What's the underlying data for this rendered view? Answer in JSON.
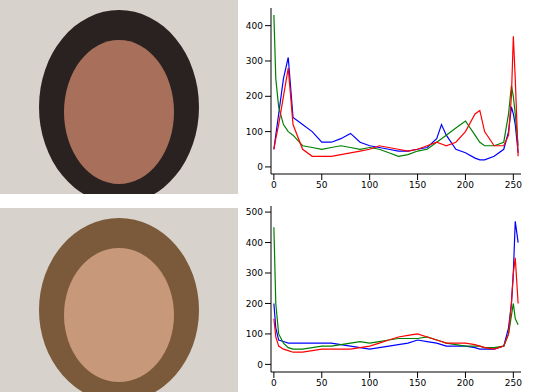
{
  "chart_data": [
    {
      "type": "line",
      "x": [
        0,
        2,
        5,
        10,
        15,
        20,
        30,
        40,
        50,
        60,
        70,
        80,
        90,
        100,
        110,
        120,
        130,
        140,
        150,
        160,
        170,
        175,
        180,
        190,
        200,
        210,
        215,
        220,
        230,
        240,
        245,
        248,
        250,
        252,
        255
      ],
      "series": [
        {
          "color": "#0000ff",
          "values": [
            50,
            90,
            150,
            250,
            310,
            140,
            120,
            100,
            70,
            70,
            80,
            95,
            70,
            60,
            55,
            50,
            45,
            45,
            50,
            55,
            80,
            120,
            90,
            50,
            40,
            25,
            20,
            20,
            30,
            50,
            100,
            170,
            150,
            120,
            40
          ]
        },
        {
          "color": "#008000",
          "values": [
            430,
            250,
            170,
            120,
            100,
            90,
            60,
            55,
            50,
            55,
            60,
            55,
            50,
            55,
            50,
            40,
            30,
            35,
            45,
            50,
            70,
            80,
            90,
            110,
            130,
            90,
            70,
            60,
            60,
            70,
            150,
            230,
            200,
            150,
            60
          ]
        },
        {
          "color": "#ff0000",
          "values": [
            50,
            80,
            120,
            200,
            280,
            120,
            50,
            30,
            30,
            30,
            35,
            40,
            45,
            50,
            60,
            55,
            50,
            45,
            50,
            60,
            70,
            65,
            60,
            70,
            100,
            150,
            160,
            100,
            60,
            60,
            90,
            200,
            370,
            250,
            30
          ]
        }
      ],
      "xlim": [
        -3,
        258
      ],
      "xticks": [
        0,
        50,
        100,
        150,
        200,
        250
      ],
      "ylim": [
        -20,
        450
      ],
      "yticks": [
        0,
        100,
        200,
        300,
        400
      ]
    },
    {
      "type": "line",
      "x": [
        0,
        2,
        5,
        10,
        15,
        20,
        30,
        40,
        50,
        60,
        70,
        80,
        90,
        100,
        110,
        120,
        130,
        140,
        150,
        160,
        170,
        175,
        180,
        190,
        200,
        210,
        215,
        220,
        230,
        240,
        245,
        248,
        250,
        252,
        255
      ],
      "series": [
        {
          "color": "#0000ff",
          "values": [
            200,
            120,
            80,
            75,
            70,
            70,
            70,
            70,
            70,
            70,
            65,
            60,
            55,
            50,
            55,
            60,
            65,
            70,
            80,
            75,
            70,
            65,
            60,
            60,
            60,
            55,
            50,
            50,
            50,
            60,
            120,
            200,
            300,
            470,
            400
          ]
        },
        {
          "color": "#008000",
          "values": [
            450,
            200,
            100,
            70,
            55,
            50,
            50,
            55,
            60,
            60,
            65,
            70,
            75,
            70,
            75,
            80,
            85,
            85,
            85,
            90,
            80,
            75,
            70,
            65,
            60,
            60,
            60,
            55,
            55,
            60,
            100,
            160,
            200,
            150,
            130
          ]
        },
        {
          "color": "#ff0000",
          "values": [
            150,
            90,
            60,
            50,
            45,
            40,
            40,
            45,
            50,
            50,
            50,
            50,
            55,
            60,
            70,
            80,
            90,
            95,
            100,
            90,
            80,
            75,
            70,
            70,
            70,
            65,
            60,
            55,
            50,
            60,
            100,
            200,
            300,
            350,
            200
          ]
        }
      ],
      "xlim": [
        -3,
        258
      ],
      "xticks": [
        0,
        50,
        100,
        150,
        200,
        250
      ],
      "ylim": [
        -25,
        520
      ],
      "yticks": [
        0,
        100,
        200,
        300,
        400,
        500
      ]
    }
  ]
}
